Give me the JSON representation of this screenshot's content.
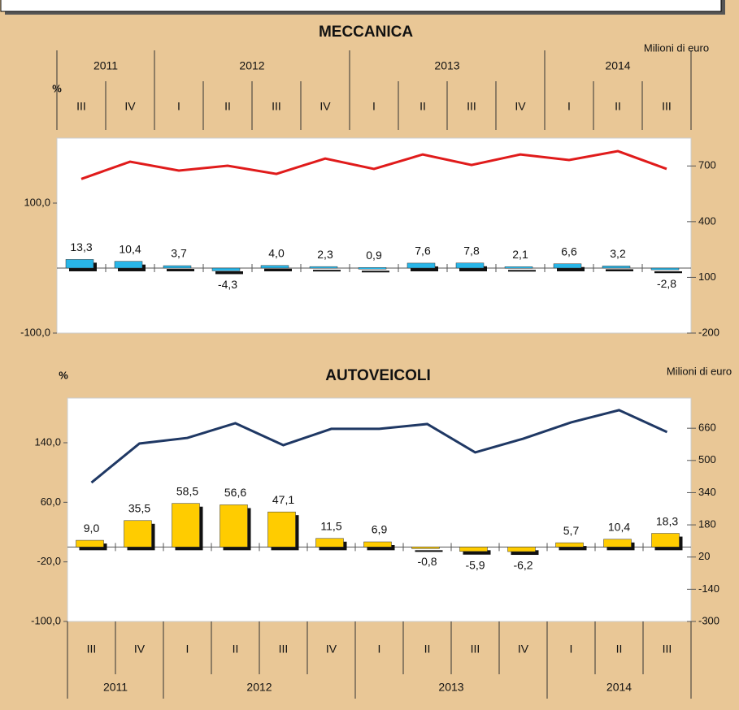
{
  "chart_data": [
    {
      "type": "bar",
      "title": "MECCANICA",
      "y_label": "%",
      "y2_label": "Milioni di euro",
      "categories": [
        "III",
        "IV",
        "I",
        "II",
        "III",
        "IV",
        "I",
        "II",
        "III",
        "IV",
        "I",
        "II",
        "III"
      ],
      "years": [
        "2011",
        "2012",
        "2013",
        "2014"
      ],
      "year_spans": [
        2,
        4,
        4,
        3
      ],
      "ylim": [
        -100,
        200
      ],
      "yticks": [
        {
          "value": -100,
          "label": "-100,0"
        },
        {
          "value": 100,
          "label": "100,0"
        }
      ],
      "y2lim": [
        -200,
        850
      ],
      "y2ticks": [
        -200,
        100,
        400,
        700
      ],
      "bars": {
        "color": "#29b6e8",
        "values": [
          13.3,
          10.4,
          3.7,
          -4.3,
          4.0,
          2.3,
          0.9,
          7.6,
          7.8,
          2.1,
          6.6,
          3.2,
          -2.8
        ],
        "value_labels": [
          "13,3",
          "10,4",
          "3,7",
          "-4,3",
          "4,0",
          "2,3",
          "0,9",
          "7,6",
          "7,8",
          "2,1",
          "6,6",
          "3,2",
          "-2,8"
        ]
      },
      "line": {
        "color": "#e01b1b",
        "axis": "y2",
        "values": [
          630,
          723,
          675,
          701,
          657,
          740,
          684,
          762,
          705,
          762,
          732,
          780,
          684
        ]
      }
    },
    {
      "type": "bar",
      "title": "AUTOVEICOLI",
      "y_label": "%",
      "y2_label": "Milioni di euro",
      "categories": [
        "III",
        "IV",
        "I",
        "II",
        "III",
        "IV",
        "I",
        "II",
        "III",
        "IV",
        "I",
        "II",
        "III"
      ],
      "years": [
        "2011",
        "2012",
        "2013",
        "2014"
      ],
      "year_spans": [
        2,
        4,
        4,
        3
      ],
      "ylim": [
        -100,
        200
      ],
      "yticks": [
        {
          "value": -100,
          "label": "-100,0"
        },
        {
          "value": -20,
          "label": "-20,0"
        },
        {
          "value": 60,
          "label": "60,0"
        },
        {
          "value": 140,
          "label": "140,0"
        }
      ],
      "y2lim": [
        -300,
        810
      ],
      "y2ticks": [
        -300,
        -140,
        20,
        180,
        340,
        500,
        660
      ],
      "bars": {
        "color": "#ffcc00",
        "values": [
          9.0,
          35.5,
          58.5,
          56.6,
          47.1,
          11.5,
          6.9,
          -0.8,
          -5.9,
          -6.2,
          5.7,
          10.4,
          18.3
        ],
        "value_labels": [
          "9,0",
          "35,5",
          "58,5",
          "56,6",
          "47,1",
          "11,5",
          "6,9",
          "-0,8",
          "-5,9",
          "-6,2",
          "5,7",
          "10,4",
          "18,3"
        ]
      },
      "line": {
        "color": "#1f3864",
        "axis": "y2",
        "values": [
          390,
          584,
          612,
          685,
          576,
          657,
          657,
          681,
          540,
          608,
          689,
          750,
          641
        ]
      }
    }
  ]
}
